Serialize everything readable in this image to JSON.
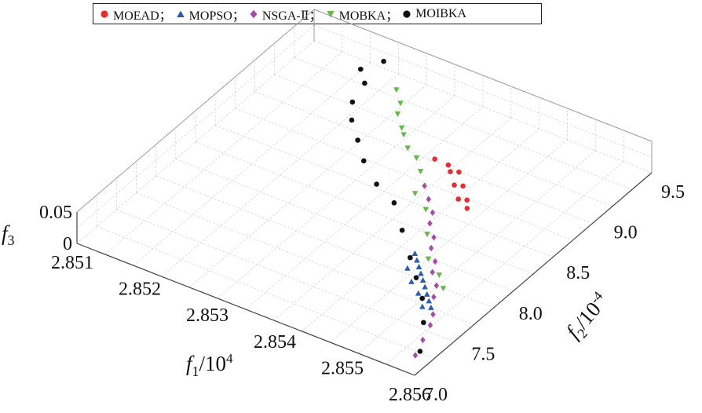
{
  "chart_data": {
    "type": "scatter",
    "title": "",
    "xlabel": "f1/10^4",
    "ylabel": "f2/10^-4",
    "zlabel": "f3",
    "xlim": [
      2.851,
      2.856
    ],
    "ylim": [
      7.0,
      9.5
    ],
    "zlim": [
      0,
      0.05
    ],
    "x_ticks": [
      "2.851",
      "2.852",
      "2.853",
      "2.854",
      "2.855",
      "2.856"
    ],
    "y_ticks": [
      "7.0",
      "7.5",
      "8.0",
      "8.5",
      "9.0",
      "9.5"
    ],
    "z_ticks": [
      "0",
      "0.05"
    ],
    "grid": true,
    "legend_position": "top",
    "series": [
      {
        "name": "MOEAD",
        "legend_label": "MOEAD；",
        "color": "#e03030",
        "marker": "circle",
        "points": [
          [
            2.8537,
            8.85,
            0.009
          ],
          [
            2.8539,
            8.85,
            0.008
          ],
          [
            2.854,
            8.8,
            0.008
          ],
          [
            2.8541,
            8.82,
            0.009
          ],
          [
            2.8542,
            8.7,
            0.008
          ],
          [
            2.8543,
            8.72,
            0.008
          ],
          [
            2.8544,
            8.6,
            0.007
          ],
          [
            2.8545,
            8.62,
            0.007
          ],
          [
            2.8546,
            8.55,
            0.007
          ]
        ]
      },
      {
        "name": "MOPSO",
        "legend_label": "MOPSO；",
        "color": "#2a5db0",
        "marker": "triangle-up",
        "points": [
          [
            2.8546,
            8.0,
            0.006
          ],
          [
            2.8547,
            7.95,
            0.006
          ],
          [
            2.8548,
            7.9,
            0.006
          ],
          [
            2.8549,
            7.85,
            0.006
          ],
          [
            2.855,
            7.8,
            0.006
          ],
          [
            2.8551,
            7.75,
            0.006
          ],
          [
            2.8552,
            7.7,
            0.005
          ],
          [
            2.8553,
            7.65,
            0.005
          ],
          [
            2.8554,
            7.6,
            0.005
          ],
          [
            2.8547,
            7.85,
            0.006
          ],
          [
            2.8549,
            7.75,
            0.006
          ],
          [
            2.8551,
            7.68,
            0.005
          ],
          [
            2.8553,
            7.58,
            0.005
          ]
        ]
      },
      {
        "name": "NSGA-Ⅱ",
        "legend_label": "NSGA-Ⅱ；",
        "color": "#a84aa8",
        "marker": "diamond",
        "points": [
          [
            2.8539,
            8.6,
            0.007
          ],
          [
            2.8541,
            8.5,
            0.007
          ],
          [
            2.8543,
            8.4,
            0.007
          ],
          [
            2.8544,
            8.3,
            0.007
          ],
          [
            2.8546,
            8.2,
            0.006
          ],
          [
            2.8547,
            8.1,
            0.006
          ],
          [
            2.8549,
            8.0,
            0.006
          ],
          [
            2.855,
            7.9,
            0.006
          ],
          [
            2.8552,
            7.8,
            0.006
          ],
          [
            2.8553,
            7.7,
            0.005
          ],
          [
            2.8555,
            7.55,
            0.005
          ],
          [
            2.8556,
            7.45,
            0.005
          ],
          [
            2.8557,
            7.3,
            0.005
          ],
          [
            2.8558,
            7.15,
            0.004
          ]
        ]
      },
      {
        "name": "MOBKA",
        "legend_label": "MOBKA；",
        "color": "#66b84a",
        "marker": "triangle-down",
        "points": [
          [
            2.8525,
            9.3,
            0.011
          ],
          [
            2.8527,
            9.2,
            0.011
          ],
          [
            2.8528,
            9.1,
            0.011
          ],
          [
            2.853,
            9.0,
            0.01
          ],
          [
            2.8531,
            8.95,
            0.01
          ],
          [
            2.8533,
            8.85,
            0.01
          ],
          [
            2.8535,
            8.8,
            0.009
          ],
          [
            2.8537,
            8.7,
            0.009
          ],
          [
            2.8539,
            8.5,
            0.008
          ],
          [
            2.8542,
            8.4,
            0.008
          ],
          [
            2.8545,
            8.2,
            0.007
          ],
          [
            2.8548,
            8.0,
            0.006
          ],
          [
            2.8551,
            7.9,
            0.006
          ],
          [
            2.8553,
            7.8,
            0.006
          ]
        ]
      },
      {
        "name": "MOIBKA",
        "legend_label": "MOIBKA",
        "color": "#111111",
        "marker": "circle",
        "points": [
          [
            2.8521,
            9.45,
            0.02
          ],
          [
            2.8519,
            9.35,
            0.012
          ],
          [
            2.8521,
            9.25,
            0.011
          ],
          [
            2.8522,
            9.05,
            0.011
          ],
          [
            2.8524,
            8.9,
            0.01
          ],
          [
            2.8527,
            8.75,
            0.01
          ],
          [
            2.853,
            8.6,
            0.009
          ],
          [
            2.8534,
            8.45,
            0.008
          ],
          [
            2.8538,
            8.35,
            0.008
          ],
          [
            2.8542,
            8.15,
            0.007
          ],
          [
            2.8546,
            7.95,
            0.006
          ],
          [
            2.8549,
            7.8,
            0.006
          ],
          [
            2.8552,
            7.65,
            0.005
          ],
          [
            2.8555,
            7.45,
            0.005
          ],
          [
            2.8558,
            7.2,
            0.004
          ]
        ]
      }
    ]
  }
}
